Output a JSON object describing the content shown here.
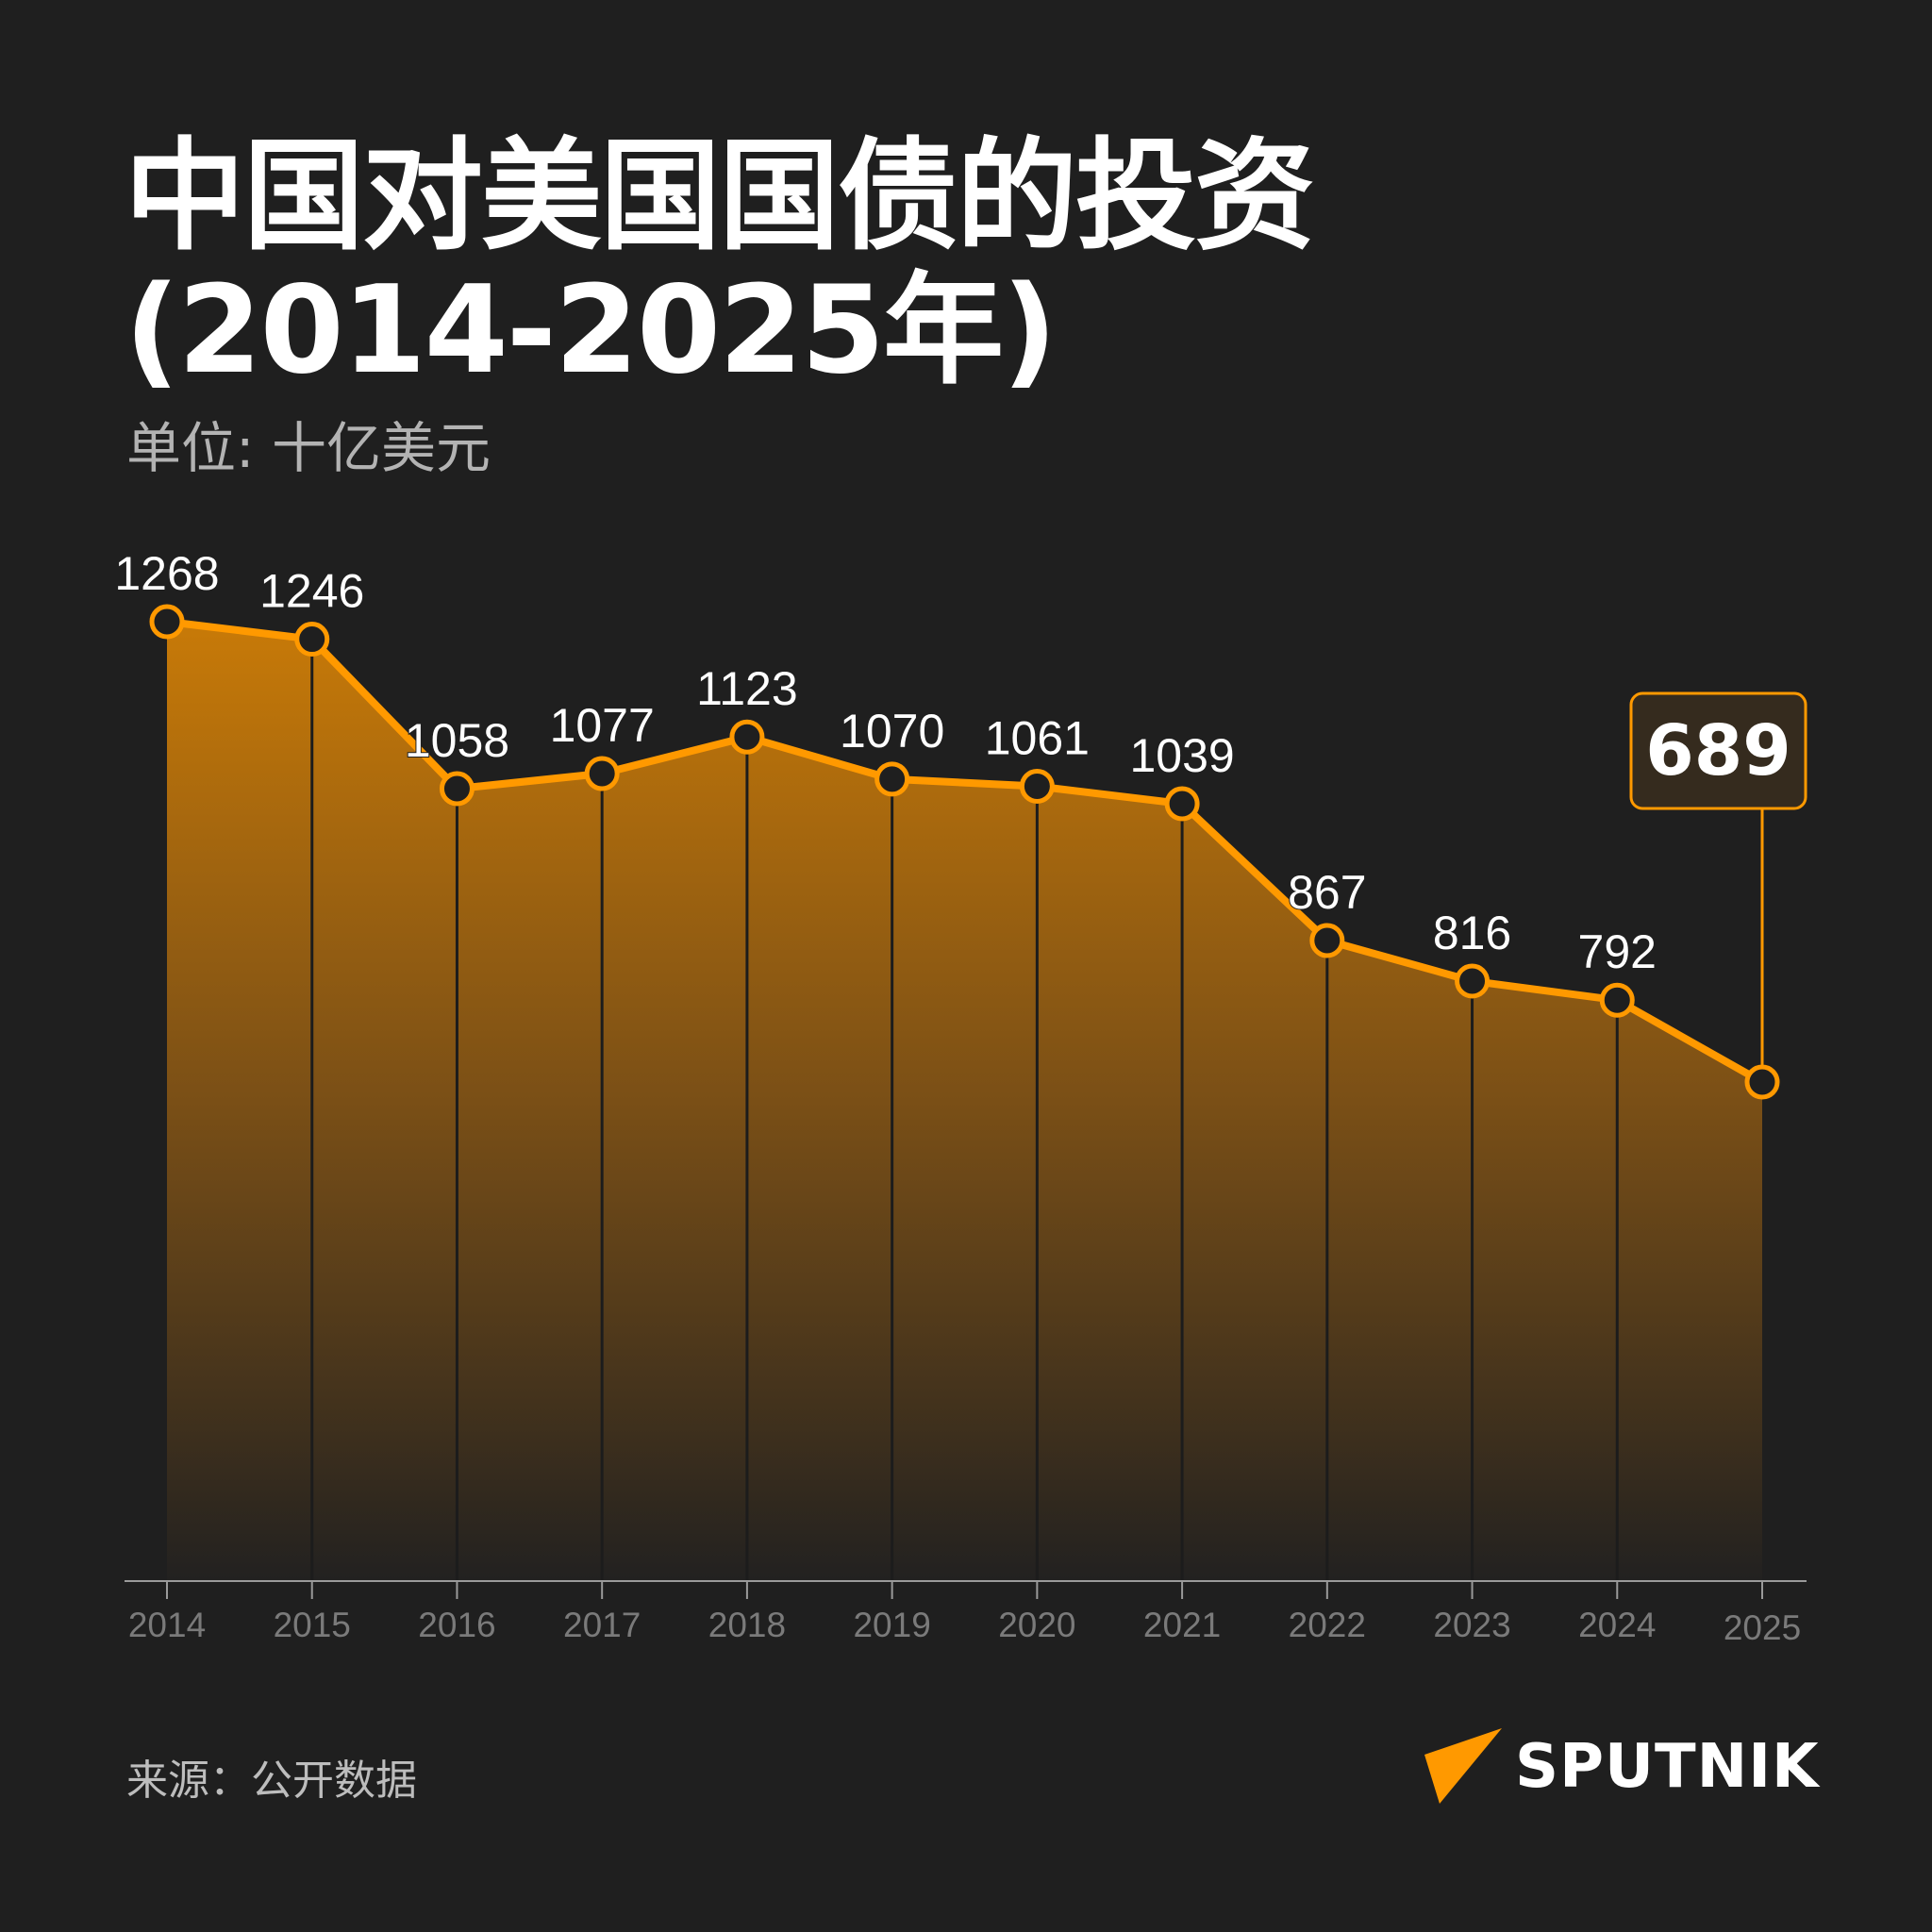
{
  "header": {
    "title_line1": "中国对美国国债的投资",
    "title_line2": "(2014-2025年)",
    "subtitle": "单位: 十亿美元"
  },
  "footer": {
    "source": "来源：公开数据",
    "logo_text": "SPUTNIK",
    "logo_icon": "sputnik-arrow-icon"
  },
  "colors": {
    "background": "#1f1f1f",
    "accent": "#ff9900",
    "fill_top": "#c87a08",
    "fill_mid": "#7a4f16",
    "fill_bottom": "#222120",
    "axis": "#9a9a9a",
    "tick_label": "#7a7a7a",
    "callout_bg": "#352b1e",
    "title": "#ffffff",
    "subtitle": "#b3b3b3"
  },
  "callout": {
    "year": "2025",
    "value": "689"
  },
  "chart_data": {
    "type": "area",
    "title": "中国对美国国债的投资 (2014-2025年)",
    "subtitle": "单位: 十亿美元",
    "xlabel": "",
    "ylabel": "十亿美元",
    "categories": [
      "2014",
      "2015",
      "2016",
      "2017",
      "2018",
      "2019",
      "2020",
      "2021",
      "2022",
      "2023",
      "2024",
      "2025"
    ],
    "values": [
      1268,
      1246,
      1058,
      1077,
      1123,
      1070,
      1061,
      1039,
      867,
      816,
      792,
      689
    ],
    "labels": [
      "1268",
      "1246",
      "1058",
      "1077",
      "1123",
      "1070",
      "1061",
      "1039",
      "867",
      "816",
      "792",
      "689"
    ],
    "highlight": {
      "category": "2025",
      "value": 689
    },
    "grid": false,
    "legend": null,
    "y_axis_visible": false,
    "source": "来源：公开数据"
  }
}
